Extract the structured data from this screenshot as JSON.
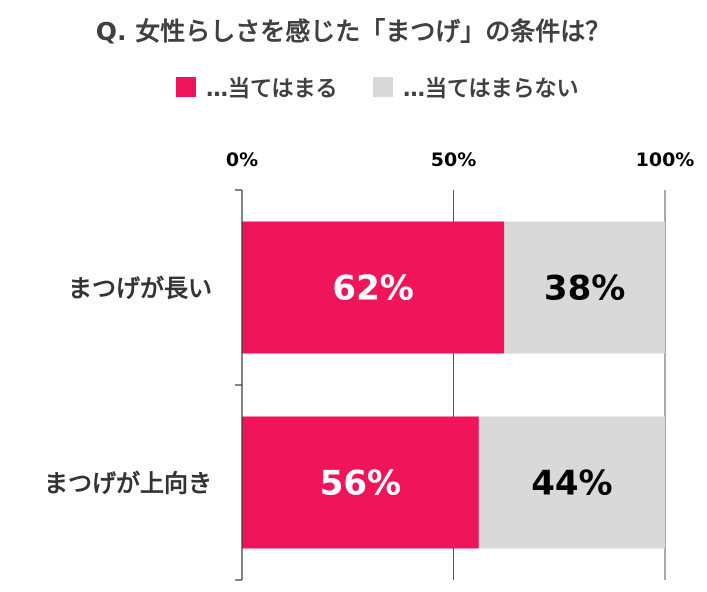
{
  "chart_data": {
    "type": "bar",
    "orientation": "horizontal",
    "stacked": true,
    "title": "Q. 女性らしさを感じた「まつげ」の条件は？",
    "categories": [
      "まつげが長い",
      "まつげが上向き"
    ],
    "series": [
      {
        "name": "…当てはまる",
        "values": [
          62,
          56
        ],
        "labels": [
          "62%",
          "56%"
        ],
        "color": "#f0145a",
        "label_color": "#ffffff"
      },
      {
        "name": "…当てはまらない",
        "values": [
          38,
          44
        ],
        "labels": [
          "38%",
          "44%"
        ],
        "color": "#d9d9d9",
        "label_color": "#000000"
      }
    ],
    "xlim": [
      0,
      100
    ],
    "ticks": [
      {
        "value": 0,
        "label": "0%"
      },
      {
        "value": 50,
        "label": "50%"
      },
      {
        "value": 100,
        "label": "100%"
      }
    ],
    "grid": true,
    "legend_position": "top"
  }
}
